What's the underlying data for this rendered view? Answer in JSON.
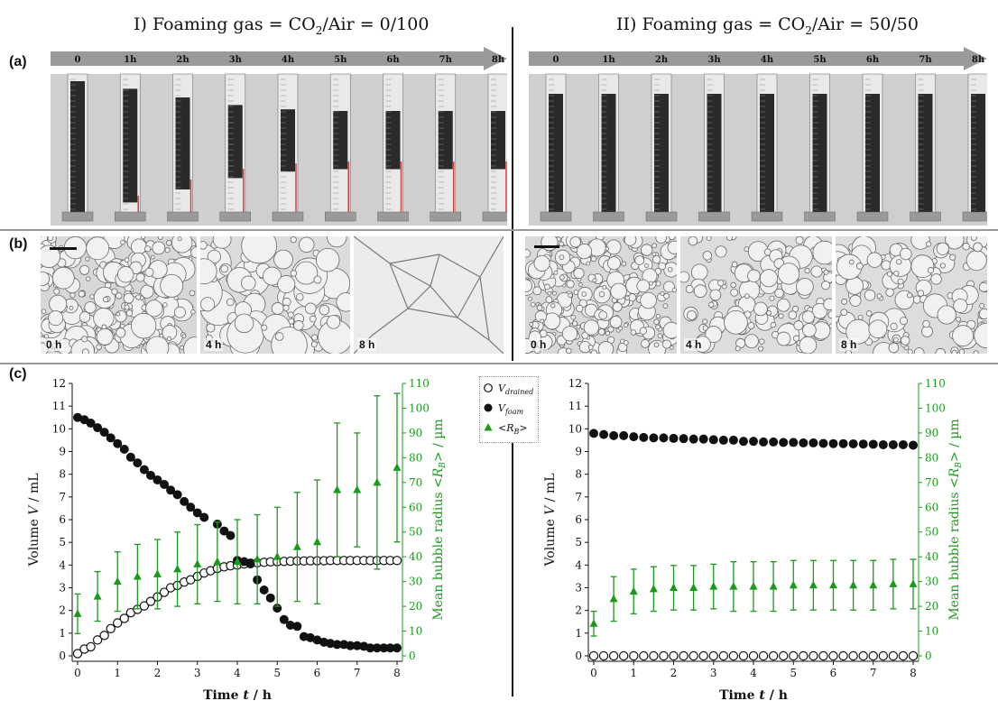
{
  "figure": {
    "titles": {
      "left_prefix": "I) Foaming gas =  CO",
      "left_suffix": "/Air = 0/100",
      "right_prefix": "II) Foaming gas  = CO",
      "right_suffix": "/Air = 50/50",
      "subscript": "2"
    },
    "panel_letters": {
      "a": "(a)",
      "b": "(b)",
      "c": "(c)"
    },
    "time_arrow_labels": [
      "0",
      "1h",
      "2h",
      "3h",
      "4h",
      "5h",
      "6h",
      "7h",
      "8h"
    ],
    "micro_labels_left": [
      "0 h",
      "4 h",
      "8 h"
    ],
    "micro_labels_right": [
      "0 h",
      "4 h",
      "8 h"
    ]
  },
  "colors": {
    "black": "#111111",
    "green": "#1a9a1a",
    "axis_right": "#1a9a1a",
    "arrow": "#9a9a9a",
    "red_marker": "#e23a3a"
  },
  "chart_data": [
    {
      "type": "scatter",
      "panel": "I",
      "xlabel": "Time t / h",
      "ylabel": "Volume V / mL",
      "y2label": "Mean bubble radius <RB> / µm",
      "xlim": [
        0,
        8
      ],
      "ylim": [
        0,
        12
      ],
      "y2lim": [
        0,
        110
      ],
      "xticks": [
        0,
        1,
        2,
        3,
        4,
        5,
        6,
        7,
        8
      ],
      "yticks": [
        0,
        1,
        2,
        3,
        4,
        5,
        6,
        7,
        8,
        9,
        10,
        11,
        12
      ],
      "y2ticks": [
        0,
        10,
        20,
        30,
        40,
        50,
        60,
        70,
        80,
        90,
        100,
        110
      ],
      "legend": {
        "position": "right-top",
        "entries": [
          {
            "marker": "open-circle",
            "text": "V",
            "sub": "drained"
          },
          {
            "marker": "filled-circle",
            "text": "V",
            "sub": "foam"
          },
          {
            "marker": "triangle",
            "text": "<R",
            "sub": "B",
            "tail": ">"
          }
        ]
      },
      "series": [
        {
          "name": "V_drained",
          "marker": "open-circle",
          "axis": "left",
          "x": [
            0,
            0.17,
            0.33,
            0.5,
            0.67,
            0.83,
            1,
            1.17,
            1.33,
            1.5,
            1.67,
            1.83,
            2,
            2.17,
            2.33,
            2.5,
            2.67,
            2.83,
            3,
            3.17,
            3.33,
            3.5,
            3.67,
            3.83,
            4,
            4.17,
            4.33,
            4.5,
            4.67,
            4.83,
            5,
            5.17,
            5.33,
            5.5,
            5.67,
            5.83,
            6,
            6.17,
            6.33,
            6.5,
            6.67,
            6.83,
            7,
            7.17,
            7.33,
            7.5,
            7.67,
            7.83,
            8
          ],
          "y": [
            0.1,
            0.3,
            0.4,
            0.7,
            0.9,
            1.2,
            1.45,
            1.65,
            1.9,
            2.05,
            2.2,
            2.4,
            2.6,
            2.8,
            3.0,
            3.1,
            3.25,
            3.35,
            3.5,
            3.65,
            3.75,
            3.85,
            3.92,
            3.97,
            4.0,
            4.05,
            4.08,
            4.1,
            4.12,
            4.14,
            4.15,
            4.16,
            4.17,
            4.18,
            4.18,
            4.19,
            4.19,
            4.19,
            4.2,
            4.2,
            4.2,
            4.2,
            4.2,
            4.2,
            4.2,
            4.2,
            4.2,
            4.2,
            4.2
          ]
        },
        {
          "name": "V_foam",
          "marker": "filled-circle",
          "axis": "left",
          "x": [
            0,
            0.17,
            0.33,
            0.5,
            0.67,
            0.83,
            1,
            1.17,
            1.33,
            1.5,
            1.67,
            1.83,
            2,
            2.17,
            2.33,
            2.5,
            2.67,
            2.83,
            3,
            3.17,
            3.5,
            3.67,
            3.83,
            4,
            4.17,
            4.33,
            4.5,
            4.67,
            4.83,
            5,
            5.17,
            5.33,
            5.5,
            5.67,
            5.83,
            6,
            6.17,
            6.33,
            6.5,
            6.67,
            6.83,
            7,
            7.17,
            7.33,
            7.5,
            7.67,
            7.83,
            8
          ],
          "y": [
            10.5,
            10.4,
            10.25,
            10.05,
            9.85,
            9.6,
            9.35,
            9.1,
            8.75,
            8.5,
            8.2,
            7.95,
            7.75,
            7.55,
            7.3,
            7.1,
            6.8,
            6.55,
            6.3,
            6.1,
            5.8,
            5.5,
            5.3,
            4.2,
            4.15,
            4.05,
            3.35,
            2.9,
            2.55,
            2.1,
            1.6,
            1.35,
            1.3,
            0.85,
            0.8,
            0.7,
            0.6,
            0.55,
            0.5,
            0.5,
            0.45,
            0.45,
            0.42,
            0.35,
            0.35,
            0.35,
            0.35,
            0.35
          ]
        },
        {
          "name": "<R_B>",
          "marker": "triangle",
          "axis": "right",
          "x": [
            0,
            0.5,
            1,
            1.5,
            2,
            2.5,
            3,
            3.5,
            4,
            4.5,
            5,
            5.5,
            6,
            6.5,
            7,
            7.5,
            8
          ],
          "y": [
            17,
            24,
            30,
            32,
            33,
            35,
            37,
            38,
            38,
            39,
            40,
            44,
            46,
            67,
            67,
            70,
            76
          ],
          "err": [
            8,
            10,
            12,
            13,
            14,
            15,
            16,
            16,
            17,
            18,
            20,
            22,
            25,
            27,
            23,
            35,
            30
          ]
        }
      ]
    },
    {
      "type": "scatter",
      "panel": "II",
      "xlabel": "Time t / h",
      "ylabel": "Volume V / mL",
      "y2label": "Mean bubble radius <RB> / µm",
      "xlim": [
        0,
        8
      ],
      "ylim": [
        0,
        12
      ],
      "y2lim": [
        0,
        110
      ],
      "xticks": [
        0,
        1,
        2,
        3,
        4,
        5,
        6,
        7,
        8
      ],
      "yticks": [
        0,
        1,
        2,
        3,
        4,
        5,
        6,
        7,
        8,
        9,
        10,
        11,
        12
      ],
      "y2ticks": [
        0,
        10,
        20,
        30,
        40,
        50,
        60,
        70,
        80,
        90,
        100,
        110
      ],
      "series": [
        {
          "name": "V_drained",
          "marker": "open-circle",
          "axis": "left",
          "x": [
            0,
            0.25,
            0.5,
            0.75,
            1,
            1.25,
            1.5,
            1.75,
            2,
            2.25,
            2.5,
            2.75,
            3,
            3.25,
            3.5,
            3.75,
            4,
            4.25,
            4.5,
            4.75,
            5,
            5.25,
            5.5,
            5.75,
            6,
            6.25,
            6.5,
            6.75,
            7,
            7.25,
            7.5,
            7.75,
            8
          ],
          "y": [
            0,
            0,
            0,
            0,
            0,
            0,
            0,
            0,
            0,
            0,
            0,
            0,
            0,
            0,
            0,
            0,
            0,
            0,
            0,
            0,
            0,
            0,
            0,
            0,
            0,
            0,
            0,
            0,
            0,
            0,
            0,
            0,
            0
          ]
        },
        {
          "name": "V_foam",
          "marker": "filled-circle",
          "axis": "left",
          "x": [
            0,
            0.25,
            0.5,
            0.75,
            1,
            1.25,
            1.5,
            1.75,
            2,
            2.25,
            2.5,
            2.75,
            3,
            3.25,
            3.5,
            3.75,
            4,
            4.25,
            4.5,
            4.75,
            5,
            5.25,
            5.5,
            5.75,
            6,
            6.25,
            6.5,
            6.75,
            7,
            7.25,
            7.5,
            7.75,
            8
          ],
          "y": [
            9.8,
            9.75,
            9.7,
            9.7,
            9.65,
            9.62,
            9.6,
            9.6,
            9.58,
            9.57,
            9.55,
            9.55,
            9.52,
            9.5,
            9.5,
            9.45,
            9.45,
            9.42,
            9.42,
            9.4,
            9.4,
            9.38,
            9.38,
            9.36,
            9.35,
            9.35,
            9.34,
            9.33,
            9.32,
            9.3,
            9.3,
            9.3,
            9.28
          ]
        },
        {
          "name": "<R_B>",
          "marker": "triangle",
          "axis": "right",
          "x": [
            0,
            0.5,
            1,
            1.5,
            2,
            2.5,
            3,
            3.5,
            4,
            4.5,
            5,
            5.5,
            6,
            6.5,
            7,
            7.5,
            8
          ],
          "y": [
            13,
            23,
            26,
            27,
            27.5,
            27.5,
            28,
            28,
            28,
            28,
            28.5,
            28.5,
            28.5,
            28.5,
            28.5,
            29,
            29
          ],
          "err": [
            5,
            9,
            9,
            9,
            9,
            9,
            9,
            10,
            10,
            10,
            10,
            10,
            10,
            10,
            10,
            10,
            10
          ]
        }
      ]
    }
  ]
}
